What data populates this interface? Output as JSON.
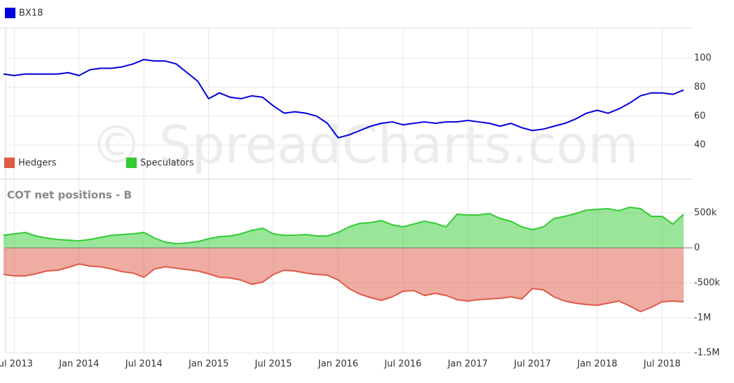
{
  "watermark": "© SpreadCharts.com",
  "chart_data": [
    {
      "type": "line",
      "x": [
        "2013-06",
        "2013-07",
        "2013-08",
        "2013-09",
        "2013-10",
        "2013-11",
        "2013-12",
        "2014-01",
        "2014-02",
        "2014-03",
        "2014-04",
        "2014-05",
        "2014-06",
        "2014-07",
        "2014-08",
        "2014-09",
        "2014-10",
        "2014-11",
        "2014-12",
        "2015-01",
        "2015-02",
        "2015-03",
        "2015-04",
        "2015-05",
        "2015-06",
        "2015-07",
        "2015-08",
        "2015-09",
        "2015-10",
        "2015-11",
        "2015-12",
        "2016-01",
        "2016-02",
        "2016-03",
        "2016-04",
        "2016-05",
        "2016-06",
        "2016-07",
        "2016-08",
        "2016-09",
        "2016-10",
        "2016-11",
        "2016-12",
        "2017-01",
        "2017-02",
        "2017-03",
        "2017-04",
        "2017-05",
        "2017-06",
        "2017-07",
        "2017-08",
        "2017-09",
        "2017-10",
        "2017-11",
        "2017-12",
        "2018-01",
        "2018-02",
        "2018-03",
        "2018-04",
        "2018-05",
        "2018-06",
        "2018-07",
        "2018-08",
        "2018-09"
      ],
      "series": [
        {
          "name": "BX18",
          "color": "#0000dd",
          "values": [
            89,
            88,
            89,
            89,
            89,
            89,
            90,
            88,
            92,
            93,
            93,
            94,
            96,
            99,
            98,
            98,
            96,
            90,
            84,
            72,
            76,
            73,
            72,
            74,
            73,
            67,
            62,
            63,
            62,
            60,
            55,
            45,
            47,
            50,
            53,
            55,
            56,
            54,
            55,
            56,
            55,
            56,
            56,
            57,
            56,
            55,
            53,
            55,
            52,
            50,
            51,
            53,
            55,
            58,
            62,
            64,
            62,
            65,
            69,
            74,
            76,
            76,
            75,
            78
          ]
        }
      ],
      "ylim": [
        36.7,
        120.8
      ],
      "yticks": [
        100,
        80,
        60,
        40
      ]
    },
    {
      "type": "area",
      "title": "COT net positions - B",
      "x": [
        "2013-06",
        "2013-07",
        "2013-08",
        "2013-09",
        "2013-10",
        "2013-11",
        "2013-12",
        "2014-01",
        "2014-02",
        "2014-03",
        "2014-04",
        "2014-05",
        "2014-06",
        "2014-07",
        "2014-08",
        "2014-09",
        "2014-10",
        "2014-11",
        "2014-12",
        "2015-01",
        "2015-02",
        "2015-03",
        "2015-04",
        "2015-05",
        "2015-06",
        "2015-07",
        "2015-08",
        "2015-09",
        "2015-10",
        "2015-11",
        "2015-12",
        "2016-01",
        "2016-02",
        "2016-03",
        "2016-04",
        "2016-05",
        "2016-06",
        "2016-07",
        "2016-08",
        "2016-09",
        "2016-10",
        "2016-11",
        "2016-12",
        "2017-01",
        "2017-02",
        "2017-03",
        "2017-04",
        "2017-05",
        "2017-06",
        "2017-07",
        "2017-08",
        "2017-09",
        "2017-10",
        "2017-11",
        "2017-12",
        "2018-01",
        "2018-02",
        "2018-03",
        "2018-04",
        "2018-05",
        "2018-06",
        "2018-07",
        "2018-08",
        "2018-09"
      ],
      "series": [
        {
          "name": "Hedgers",
          "color": "#e05a47",
          "values": [
            -380000,
            -400000,
            -400000,
            -370000,
            -330000,
            -320000,
            -280000,
            -230000,
            -260000,
            -270000,
            -300000,
            -340000,
            -360000,
            -420000,
            -300000,
            -270000,
            -290000,
            -310000,
            -330000,
            -370000,
            -420000,
            -430000,
            -460000,
            -520000,
            -490000,
            -380000,
            -320000,
            -330000,
            -360000,
            -380000,
            -390000,
            -460000,
            -580000,
            -660000,
            -710000,
            -750000,
            -700000,
            -620000,
            -610000,
            -680000,
            -650000,
            -680000,
            -740000,
            -760000,
            -740000,
            -730000,
            -720000,
            -700000,
            -730000,
            -580000,
            -600000,
            -700000,
            -760000,
            -790000,
            -810000,
            -820000,
            -790000,
            -760000,
            -830000,
            -910000,
            -850000,
            -770000,
            -760000,
            -770000
          ]
        },
        {
          "name": "Speculators",
          "color": "#33cc33",
          "values": [
            180000,
            200000,
            220000,
            170000,
            140000,
            120000,
            110000,
            100000,
            120000,
            150000,
            180000,
            190000,
            200000,
            220000,
            140000,
            80000,
            60000,
            70000,
            90000,
            130000,
            160000,
            170000,
            200000,
            250000,
            280000,
            200000,
            180000,
            180000,
            190000,
            170000,
            170000,
            220000,
            300000,
            350000,
            360000,
            390000,
            330000,
            300000,
            340000,
            380000,
            350000,
            300000,
            480000,
            470000,
            470000,
            490000,
            420000,
            380000,
            300000,
            260000,
            300000,
            420000,
            450000,
            490000,
            540000,
            550000,
            560000,
            530000,
            580000,
            560000,
            450000,
            450000,
            340000,
            480000
          ]
        }
      ],
      "ylim": [
        -1500000,
        640000
      ],
      "yticks": [
        {
          "value": 500000,
          "label": "500k"
        },
        0,
        {
          "value": -500000,
          "label": "-500k"
        },
        {
          "value": -1000000,
          "label": "-1M"
        },
        {
          "value": -1500000,
          "label": "-1.5M"
        }
      ],
      "xticks": [
        {
          "value": "2013-07",
          "label": "Jul 2013"
        },
        {
          "value": "2014-01",
          "label": "Jan 2014"
        },
        {
          "value": "2014-07",
          "label": "Jul 2014"
        },
        {
          "value": "2015-01",
          "label": "Jan 2015"
        },
        {
          "value": "2015-07",
          "label": "Jul 2015"
        },
        {
          "value": "2016-01",
          "label": "Jan 2016"
        },
        {
          "value": "2016-07",
          "label": "Jul 2016"
        },
        {
          "value": "2017-01",
          "label": "Jan 2017"
        },
        {
          "value": "2017-07",
          "label": "Jul 2017"
        },
        {
          "value": "2018-01",
          "label": "Jan 2018"
        },
        {
          "value": "2018-07",
          "label": "Jul 2018"
        }
      ]
    }
  ]
}
